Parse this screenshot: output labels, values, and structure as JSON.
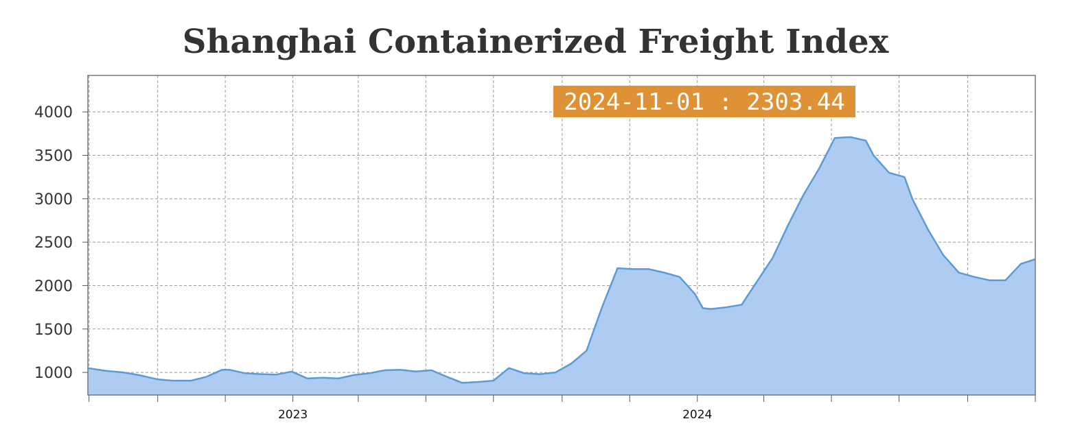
{
  "chart_data": {
    "type": "area",
    "title": "Shanghai Containerized Freight Index",
    "xlabel": "",
    "ylabel": "",
    "x_axis_labels": [
      "2023",
      "2024"
    ],
    "y_ticks": [
      1000,
      1500,
      2000,
      2500,
      3000,
      3500,
      4000
    ],
    "ylim": [
      740,
      4420
    ],
    "xlim": [
      "2022-06-30",
      "2024-11-01"
    ],
    "grid": true,
    "tooltip": {
      "date": "2024-11-01",
      "value": "2303.44",
      "label": "2024-11-01 : 2303.44"
    },
    "colors": {
      "fill": "#aecbf1",
      "line": "#5b9bd5",
      "tooltip_bg": "#de9235",
      "grid": "#999999"
    },
    "series": [
      {
        "x": [
          "2022-06-30",
          "2022-07-15",
          "2022-08-01",
          "2022-08-15",
          "2022-09-01",
          "2022-09-15",
          "2022-10-01",
          "2022-10-15",
          "2022-10-29",
          "2022-11-05",
          "2022-11-19",
          "2022-12-03",
          "2022-12-17",
          "2022-12-31",
          "2023-01-14",
          "2023-01-28",
          "2023-02-11",
          "2023-02-25",
          "2023-03-11",
          "2023-03-25",
          "2023-04-08",
          "2023-04-22",
          "2023-05-06",
          "2023-05-20",
          "2023-06-03",
          "2023-06-17",
          "2023-07-01",
          "2023-07-15",
          "2023-07-29",
          "2023-08-12",
          "2023-08-26",
          "2023-09-09",
          "2023-09-23",
          "2023-10-07",
          "2023-10-21",
          "2023-11-04",
          "2023-11-18",
          "2023-12-02",
          "2023-12-16",
          "2023-12-30",
          "2024-01-06",
          "2024-01-13",
          "2024-01-27",
          "2024-02-10",
          "2024-02-24",
          "2024-03-09",
          "2024-03-23",
          "2024-04-06",
          "2024-04-20",
          "2024-05-04",
          "2024-05-18",
          "2024-06-01",
          "2024-06-08",
          "2024-06-22",
          "2024-07-06",
          "2024-07-13",
          "2024-07-27",
          "2024-08-10",
          "2024-08-24",
          "2024-09-07",
          "2024-09-21",
          "2024-10-05",
          "2024-10-19",
          "2024-11-01"
        ],
        "y": [
          1050,
          1020,
          1000,
          970,
          920,
          905,
          905,
          950,
          1030,
          1030,
          990,
          980,
          975,
          1010,
          930,
          940,
          930,
          970,
          990,
          1025,
          1030,
          1010,
          1025,
          950,
          880,
          890,
          905,
          1050,
          990,
          980,
          1000,
          1100,
          1250,
          1750,
          2200,
          2190,
          2190,
          2150,
          2100,
          1900,
          1740,
          1730,
          1750,
          1780,
          2050,
          2320,
          2700,
          3050,
          3350,
          3700,
          3710,
          3670,
          3500,
          3300,
          3250,
          3000,
          2650,
          2350,
          2150,
          2100,
          2060,
          2060,
          2250,
          2303.44
        ]
      }
    ]
  }
}
